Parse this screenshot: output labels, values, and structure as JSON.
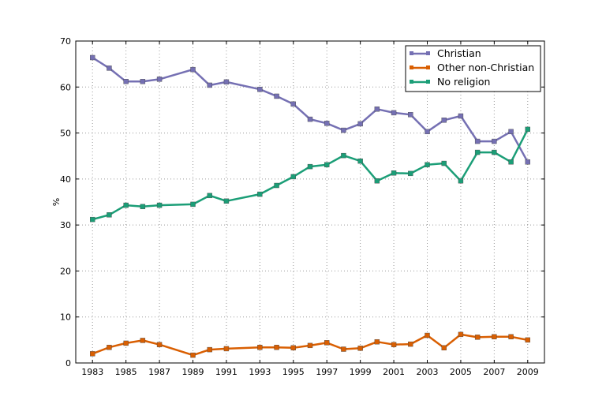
{
  "chart_data": {
    "type": "line",
    "title": "",
    "xlabel": "",
    "ylabel": "%",
    "xlim": [
      1982,
      2010
    ],
    "ylim": [
      0,
      70
    ],
    "grid": true,
    "legend_position": "top-right",
    "x_ticks": [
      1983,
      1985,
      1987,
      1989,
      1991,
      1993,
      1995,
      1997,
      1999,
      2001,
      2003,
      2005,
      2007,
      2009
    ],
    "y_ticks": [
      0,
      10,
      20,
      30,
      40,
      50,
      60,
      70
    ],
    "x": [
      1983,
      1984,
      1985,
      1986,
      1987,
      1989,
      1990,
      1991,
      1993,
      1994,
      1995,
      1996,
      1997,
      1998,
      1999,
      2000,
      2001,
      2002,
      2003,
      2004,
      2005,
      2006,
      2007,
      2008,
      2009
    ],
    "series": [
      {
        "name": "Christian",
        "color": "#7570b3",
        "values": [
          66.4,
          64.1,
          61.2,
          61.2,
          61.7,
          63.8,
          60.4,
          61.1,
          59.5,
          58.0,
          56.3,
          53.0,
          52.1,
          50.6,
          52.0,
          55.2,
          54.4,
          54.0,
          50.3,
          52.8,
          53.7,
          48.2,
          48.2,
          50.3,
          43.7
        ]
      },
      {
        "name": "Other non-Christian",
        "color": "#d95f02",
        "values": [
          2.0,
          3.4,
          4.3,
          4.9,
          4.0,
          1.7,
          2.9,
          3.1,
          3.4,
          3.4,
          3.3,
          3.8,
          4.4,
          3.0,
          3.2,
          4.6,
          4.0,
          4.1,
          6.0,
          3.3,
          6.2,
          5.6,
          5.7,
          5.7,
          5.0
        ]
      },
      {
        "name": "No religion",
        "color": "#1b9e77",
        "values": [
          31.2,
          32.2,
          34.3,
          34.0,
          34.3,
          34.5,
          36.4,
          35.2,
          36.7,
          38.6,
          40.5,
          42.7,
          43.1,
          45.1,
          43.9,
          39.6,
          41.3,
          41.2,
          43.1,
          43.4,
          39.6,
          45.8,
          45.8,
          43.7,
          50.8
        ]
      }
    ]
  }
}
